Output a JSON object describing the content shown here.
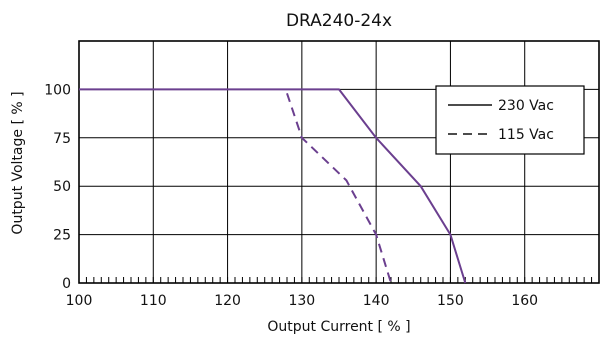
{
  "chart_data": {
    "type": "line",
    "title": "DRA240-24x",
    "xlabel": "Output Current [ % ]",
    "ylabel": "Output Voltage  [ % ]",
    "xlim": [
      100,
      170
    ],
    "ylim": [
      0,
      125
    ],
    "x_ticks": [
      100,
      110,
      120,
      130,
      140,
      150,
      160
    ],
    "y_ticks": [
      0,
      25,
      50,
      75,
      100
    ],
    "grid": true,
    "legend_position": "top-right",
    "series": [
      {
        "name": "230 Vac",
        "line_style": "solid",
        "color": "#6b3f8f",
        "x": [
          100,
          135,
          140,
          146,
          150,
          152
        ],
        "y": [
          100,
          100,
          75,
          50,
          25,
          0
        ]
      },
      {
        "name": "115 Vac",
        "line_style": "dashed",
        "color": "#6b3f8f",
        "x": [
          128,
          130,
          136,
          140,
          142
        ],
        "y": [
          98,
          75,
          53,
          25,
          0
        ]
      }
    ]
  }
}
